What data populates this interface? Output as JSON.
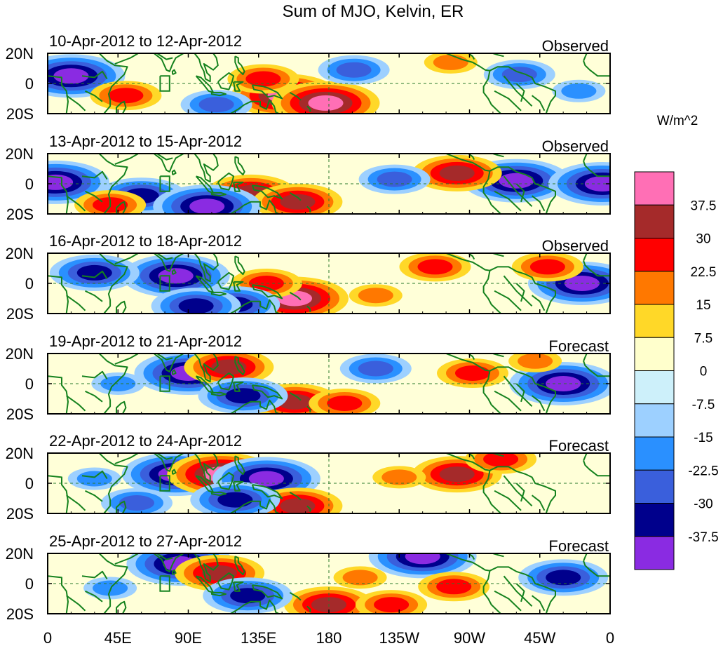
{
  "chart_data": {
    "type": "heatmap",
    "title": "Sum of MJO, Kelvin, ER",
    "units": "W/m^2",
    "x_ticks": [
      "0",
      "45E",
      "90E",
      "135E",
      "180",
      "135W",
      "90W",
      "45W",
      "0"
    ],
    "x_values_deg": [
      0,
      45,
      90,
      135,
      180,
      225,
      270,
      315,
      360
    ],
    "y_ticks": [
      "20N",
      "0",
      "20S"
    ],
    "y_values_deg": [
      20,
      0,
      -20
    ],
    "xlim": [
      0,
      360
    ],
    "ylim": [
      -20,
      20
    ],
    "colorbar": {
      "levels": [
        "37.5",
        "30",
        "22.5",
        "15",
        "7.5",
        "0",
        "-7.5",
        "-15",
        "-22.5",
        "-30",
        "-37.5"
      ],
      "colors": [
        "#ff6fb5",
        "#a52a2a",
        "#ff0000",
        "#ff7800",
        "#ffd828",
        "#ffffcc",
        "#cdf0fa",
        "#9dd0ff",
        "#2a90ff",
        "#3a5fdc",
        "#00008c",
        "#8a2be2"
      ]
    },
    "panels": [
      {
        "period": "10-Apr-2012 to 12-Apr-2012",
        "kind": "Observed",
        "anomalies": [
          {
            "lon": 15,
            "lat": 5,
            "value": -37.5
          },
          {
            "lon": 152,
            "lat": -8,
            "value": 37.5
          },
          {
            "lon": 178,
            "lat": -13,
            "value": 37.5
          },
          {
            "lon": 138,
            "lat": 3,
            "value": 22.5
          },
          {
            "lon": 196,
            "lat": 9,
            "value": -22.5
          },
          {
            "lon": 302,
            "lat": 6,
            "value": -22.5
          },
          {
            "lon": 50,
            "lat": -8,
            "value": 22.5
          },
          {
            "lon": 258,
            "lat": 14,
            "value": 15
          },
          {
            "lon": 108,
            "lat": -14,
            "value": -22.5
          },
          {
            "lon": 340,
            "lat": -5,
            "value": -15
          }
        ]
      },
      {
        "period": "13-Apr-2012 to 15-Apr-2012",
        "kind": "Observed",
        "anomalies": [
          {
            "lon": 5,
            "lat": 1,
            "value": -37.5
          },
          {
            "lon": 130,
            "lat": -6,
            "value": 30
          },
          {
            "lon": 160,
            "lat": -12,
            "value": 30
          },
          {
            "lon": 60,
            "lat": -8,
            "value": -30
          },
          {
            "lon": 102,
            "lat": -15,
            "value": -37.5
          },
          {
            "lon": 300,
            "lat": 2,
            "value": -37.5
          },
          {
            "lon": 262,
            "lat": 7,
            "value": 30
          },
          {
            "lon": 222,
            "lat": 3,
            "value": -22.5
          },
          {
            "lon": 40,
            "lat": -14,
            "value": 22.5
          },
          {
            "lon": 355,
            "lat": 0,
            "value": -37.5
          }
        ]
      },
      {
        "period": "16-Apr-2012 to 18-Apr-2012",
        "kind": "Observed",
        "anomalies": [
          {
            "lon": 82,
            "lat": 5,
            "value": -37.5
          },
          {
            "lon": 158,
            "lat": -10,
            "value": 37.5
          },
          {
            "lon": 140,
            "lat": 0,
            "value": 22.5
          },
          {
            "lon": 30,
            "lat": 7,
            "value": -30
          },
          {
            "lon": 248,
            "lat": 11,
            "value": 22.5
          },
          {
            "lon": 120,
            "lat": -14,
            "value": -30
          },
          {
            "lon": 342,
            "lat": 0,
            "value": -37.5
          },
          {
            "lon": 320,
            "lat": 11,
            "value": 22.5
          },
          {
            "lon": 210,
            "lat": -8,
            "value": 15
          },
          {
            "lon": 95,
            "lat": -15,
            "value": -30
          }
        ]
      },
      {
        "period": "19-Apr-2012 to 21-Apr-2012",
        "kind": "Forecast",
        "anomalies": [
          {
            "lon": 90,
            "lat": 7,
            "value": -37.5
          },
          {
            "lon": 116,
            "lat": 11,
            "value": 30
          },
          {
            "lon": 158,
            "lat": -12,
            "value": 30
          },
          {
            "lon": 272,
            "lat": 7,
            "value": 22.5
          },
          {
            "lon": 330,
            "lat": 0,
            "value": -37.5
          },
          {
            "lon": 125,
            "lat": -8,
            "value": -30
          },
          {
            "lon": 190,
            "lat": -13,
            "value": 22.5
          },
          {
            "lon": 210,
            "lat": 10,
            "value": -22.5
          },
          {
            "lon": 45,
            "lat": 0,
            "value": -15
          },
          {
            "lon": 312,
            "lat": 15,
            "value": 15
          }
        ]
      },
      {
        "period": "22-Apr-2012 to 24-Apr-2012",
        "kind": "Forecast",
        "anomalies": [
          {
            "lon": 82,
            "lat": 6,
            "value": -37.5
          },
          {
            "lon": 111,
            "lat": 6,
            "value": 37.5
          },
          {
            "lon": 140,
            "lat": 3,
            "value": -37.5
          },
          {
            "lon": 262,
            "lat": 6,
            "value": 30
          },
          {
            "lon": 160,
            "lat": -15,
            "value": 30
          },
          {
            "lon": 290,
            "lat": 16,
            "value": 22.5
          },
          {
            "lon": 120,
            "lat": -11,
            "value": -30
          },
          {
            "lon": 225,
            "lat": 4,
            "value": 15
          },
          {
            "lon": 30,
            "lat": 3,
            "value": -15
          },
          {
            "lon": 57,
            "lat": -13,
            "value": -22.5
          }
        ]
      },
      {
        "period": "25-Apr-2012 to 27-Apr-2012",
        "kind": "Forecast",
        "anomalies": [
          {
            "lon": 85,
            "lat": 13,
            "value": -37.5
          },
          {
            "lon": 110,
            "lat": 7,
            "value": 30
          },
          {
            "lon": 180,
            "lat": -14,
            "value": 30
          },
          {
            "lon": 240,
            "lat": 18,
            "value": -37.5
          },
          {
            "lon": 128,
            "lat": -8,
            "value": -30
          },
          {
            "lon": 220,
            "lat": -14,
            "value": 22.5
          },
          {
            "lon": 260,
            "lat": -2,
            "value": 22.5
          },
          {
            "lon": 330,
            "lat": 4,
            "value": -30
          },
          {
            "lon": 200,
            "lat": 4,
            "value": 15
          },
          {
            "lon": 40,
            "lat": -3,
            "value": -15
          }
        ]
      }
    ]
  }
}
